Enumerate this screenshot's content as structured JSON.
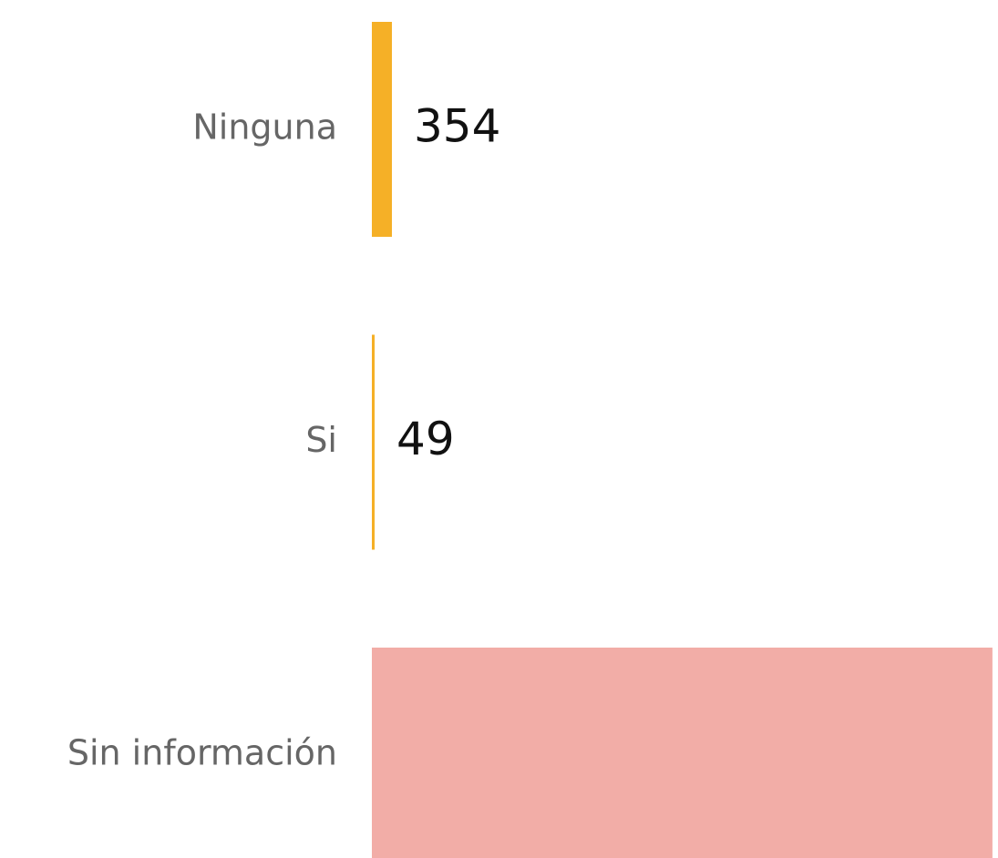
{
  "chart_data": {
    "type": "hbar",
    "categories": [
      "Ninguna",
      "Si",
      "Sin información"
    ],
    "values": [
      354,
      49,
      10950
    ],
    "value_labels": [
      "354",
      "49",
      null
    ],
    "colors": [
      "#f5b027",
      "#f5b027",
      "#f2ada7"
    ],
    "xlim": [
      0,
      11000
    ]
  }
}
